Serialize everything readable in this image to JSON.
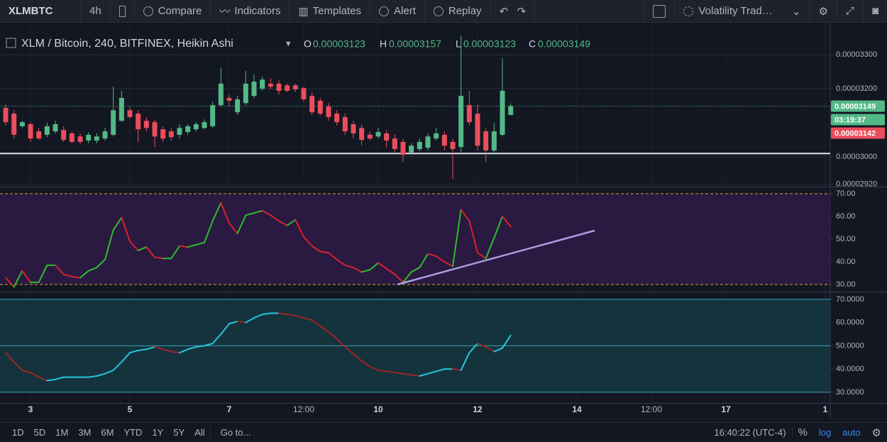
{
  "toolbar": {
    "symbol": "XLMBTC",
    "interval": "4h",
    "items": [
      "Compare",
      "Indicators",
      "Templates",
      "Alert",
      "Replay"
    ],
    "layout": "Volatility Trad…"
  },
  "legend": {
    "title": "XLM / Bitcoin, 240, BITFINEX, Heikin Ashi",
    "ohlc": [
      {
        "key": "O",
        "value": "0.00003123"
      },
      {
        "key": "H",
        "value": "0.00003157"
      },
      {
        "key": "L",
        "value": "0.00003123"
      },
      {
        "key": "C",
        "value": "0.00003149"
      }
    ]
  },
  "chart_data": [
    {
      "type": "candlestick",
      "up_color": "#53b987",
      "down_color": "#eb4d5c",
      "xlim": [
        -0.43,
        99.6
      ],
      "xticks": [
        {
          "value": 3,
          "label": "3"
        },
        {
          "value": 15,
          "label": "5"
        },
        {
          "value": 27,
          "label": "7"
        },
        {
          "value": 36,
          "label": "12:00"
        },
        {
          "value": 45,
          "label": "10"
        },
        {
          "value": 57,
          "label": "12"
        },
        {
          "value": 69,
          "label": "14"
        },
        {
          "value": 78,
          "label": "12:00"
        },
        {
          "value": 87,
          "label": "17"
        },
        {
          "value": 99,
          "label": "1"
        }
      ],
      "ylim": [
        2.915e-05,
        3.373e-05
      ],
      "yticks": [
        {
          "value": 3.3e-05,
          "label": "0.00003300"
        },
        {
          "value": 3.2e-05,
          "label": "0.00003200"
        },
        {
          "value": 3e-05,
          "label": "0.00003000"
        },
        {
          "value": 2.92e-05,
          "label": "0.00002920"
        }
      ],
      "hline": 3.01e-05,
      "hline_color": "#e6e8ee",
      "open": [
        3.144e-05,
        3.127e-05,
        3.09e-05,
        3.096e-05,
        3.075e-05,
        3.065e-05,
        3.075e-05,
        3.079e-05,
        3.069e-05,
        3.06e-05,
        3.048e-05,
        3.048e-05,
        3.054e-05,
        3.065e-05,
        3.106e-05,
        3.137e-05,
        3.127e-05,
        3.106e-05,
        3.102e-05,
        3.081e-05,
        3.075e-05,
        3.065e-05,
        3.073e-05,
        3.081e-05,
        3.085e-05,
        3.09e-05,
        3.152e-05,
        3.173e-05,
        3.131e-05,
        3.158e-05,
        3.179e-05,
        3.2e-05,
        3.215e-05,
        3.215e-05,
        3.21e-05,
        3.21e-05,
        3.202e-05,
        3.179e-05,
        3.165e-05,
        3.148e-05,
        3.127e-05,
        3.117e-05,
        3.096e-05,
        3.085e-05,
        3.065e-05,
        3.06e-05,
        3.069e-05,
        3.054e-05,
        3.044e-05,
        3.013e-05,
        3.023e-05,
        3.027e-05,
        3.054e-05,
        3.065e-05,
        3.044e-05,
        3.029e-05,
        3.152e-05,
        3.127e-05,
        3.075e-05,
        3.019e-05,
        3.065e-05,
        3.123e-05
      ],
      "high": [
        3.154e-05,
        3.137e-05,
        3.106e-05,
        3.102e-05,
        3.085e-05,
        3.1e-05,
        3.106e-05,
        3.09e-05,
        3.075e-05,
        3.069e-05,
        3.073e-05,
        3.069e-05,
        3.085e-05,
        3.206e-05,
        3.194e-05,
        3.148e-05,
        3.137e-05,
        3.117e-05,
        3.11e-05,
        3.09e-05,
        3.085e-05,
        3.096e-05,
        3.096e-05,
        3.102e-05,
        3.11e-05,
        3.162e-05,
        3.262e-05,
        3.183e-05,
        3.179e-05,
        3.252e-05,
        3.242e-05,
        3.235e-05,
        3.231e-05,
        3.225e-05,
        3.215e-05,
        3.215e-05,
        3.206e-05,
        3.19e-05,
        3.173e-05,
        3.158e-05,
        3.137e-05,
        3.127e-05,
        3.106e-05,
        3.096e-05,
        3.075e-05,
        3.085e-05,
        3.079e-05,
        3.065e-05,
        3.054e-05,
        3.04e-05,
        3.054e-05,
        3.069e-05,
        3.085e-05,
        3.075e-05,
        3.054e-05,
        3.356e-05,
        3.194e-05,
        3.154e-05,
        3.085e-05,
        3.1e-05,
        3.29e-05,
        3.157e-05
      ],
      "low": [
        3.092e-05,
        3.054e-05,
        3.085e-05,
        3.044e-05,
        3.05e-05,
        3.058e-05,
        3.069e-05,
        3.044e-05,
        3.04e-05,
        3.038e-05,
        3.04e-05,
        3.04e-05,
        3.048e-05,
        3.06e-05,
        3.102e-05,
        3.112e-05,
        3.044e-05,
        3.075e-05,
        3.029e-05,
        3.044e-05,
        3.048e-05,
        3.054e-05,
        3.065e-05,
        3.075e-05,
        3.081e-05,
        3.085e-05,
        3.148e-05,
        3.148e-05,
        3.123e-05,
        3.152e-05,
        3.173e-05,
        3.194e-05,
        3.198e-05,
        3.183e-05,
        3.19e-05,
        3.19e-05,
        3.162e-05,
        3.123e-05,
        3.121e-05,
        3.106e-05,
        3.092e-05,
        3.065e-05,
        3.054e-05,
        3.033e-05,
        3.048e-05,
        3.054e-05,
        3.027e-05,
        3.013e-05,
        2.985e-05,
        3.006e-05,
        3.017e-05,
        3.019e-05,
        3.048e-05,
        3.019e-05,
        2.935e-05,
        3.013e-05,
        3.092e-05,
        3.019e-05,
        2.985e-05,
        3.006e-05,
        3.06e-05,
        3.123e-05
      ],
      "close": [
        3.102e-05,
        3.065e-05,
        3.102e-05,
        3.054e-05,
        3.054e-05,
        3.09e-05,
        3.096e-05,
        3.05e-05,
        3.044e-05,
        3.044e-05,
        3.065e-05,
        3.06e-05,
        3.075e-05,
        3.137e-05,
        3.173e-05,
        3.117e-05,
        3.081e-05,
        3.085e-05,
        3.06e-05,
        3.054e-05,
        3.058e-05,
        3.085e-05,
        3.09e-05,
        3.096e-05,
        3.102e-05,
        3.152e-05,
        3.215e-05,
        3.165e-05,
        3.169e-05,
        3.215e-05,
        3.221e-05,
        3.227e-05,
        3.206e-05,
        3.194e-05,
        3.194e-05,
        3.198e-05,
        3.169e-05,
        3.131e-05,
        3.127e-05,
        3.117e-05,
        3.102e-05,
        3.075e-05,
        3.069e-05,
        3.05e-05,
        3.054e-05,
        3.073e-05,
        3.048e-05,
        3.023e-05,
        3.006e-05,
        3.033e-05,
        3.044e-05,
        3.06e-05,
        3.069e-05,
        3.033e-05,
        3.023e-05,
        3.179e-05,
        3.102e-05,
        3.033e-05,
        3.019e-05,
        3.075e-05,
        3.194e-05,
        3.149e-05
      ],
      "price_labels": [
        {
          "label": "0.00003149",
          "color": "#53b987"
        },
        {
          "label": "03:19:37",
          "color": "#53b987"
        },
        {
          "label": "0.00003142",
          "color": "#eb4d5c"
        }
      ]
    },
    {
      "type": "line",
      "up_color": "#2dbd2d",
      "down_color": "#d8202e",
      "background": "#2a1940",
      "ylim": [
        27.2,
        72.5
      ],
      "yticks": [
        {
          "value": 70,
          "label": "70.00"
        },
        {
          "value": 60,
          "label": "60.00"
        },
        {
          "value": 50,
          "label": "50.00"
        },
        {
          "value": 40,
          "label": "40.00"
        },
        {
          "value": 30,
          "label": "30.00"
        }
      ],
      "levels": [
        70,
        30
      ],
      "level_color": "#d6a436",
      "values": [
        33,
        29,
        36,
        31,
        31,
        38.5,
        38.5,
        34.5,
        33.5,
        33,
        36,
        37.5,
        41,
        54,
        59.5,
        49,
        45,
        46.5,
        42,
        41.5,
        41.5,
        47,
        46.5,
        47.5,
        48.5,
        58,
        66,
        57,
        52.5,
        60.5,
        61.5,
        62.5,
        60.5,
        58,
        56,
        58.5,
        51,
        47,
        44.5,
        44,
        41,
        38.5,
        37.5,
        35.5,
        36.5,
        39.5,
        37,
        34.5,
        31,
        35.5,
        37.5,
        43.5,
        42.5,
        40,
        38,
        63,
        58,
        44,
        41.5,
        50.5,
        60,
        55.5
      ]
    },
    {
      "type": "line",
      "up_color": "#26c6da",
      "down_color": "#a02424",
      "background": "#14333d",
      "ylim": [
        25.4,
        72.7
      ],
      "yticks": [
        {
          "value": 70,
          "label": "70.0000"
        },
        {
          "value": 60,
          "label": "60.0000"
        },
        {
          "value": 50,
          "label": "50.0000"
        },
        {
          "value": 40,
          "label": "40.0000"
        },
        {
          "value": 30,
          "label": "30.0000"
        }
      ],
      "levels": [
        70,
        50,
        30
      ],
      "level_color": "#3aa7b3",
      "values": [
        47,
        43,
        39.5,
        38.5,
        36.5,
        35,
        35.5,
        36.5,
        36.5,
        36.5,
        36.5,
        37,
        38,
        39.5,
        43,
        47,
        48,
        48.5,
        49.5,
        48.5,
        47.5,
        47,
        48.5,
        49.5,
        50,
        51,
        55,
        59.5,
        60.5,
        60,
        62,
        63.5,
        64,
        64,
        63.5,
        63,
        62,
        61,
        58.5,
        56,
        53,
        49.5,
        46.5,
        43.5,
        41,
        39.5,
        39,
        38.5,
        38,
        37.5,
        37,
        38,
        39,
        40,
        40,
        39.5,
        47,
        51,
        49.5,
        47.5,
        49,
        54.5
      ]
    }
  ],
  "bottom_bar": {
    "ranges": [
      "1D",
      "5D",
      "1M",
      "3M",
      "6M",
      "YTD",
      "1Y",
      "5Y",
      "All"
    ],
    "goto": "Go to...",
    "clock": "16:40:22 (UTC-4)",
    "options": [
      "%",
      "log",
      "auto"
    ]
  }
}
